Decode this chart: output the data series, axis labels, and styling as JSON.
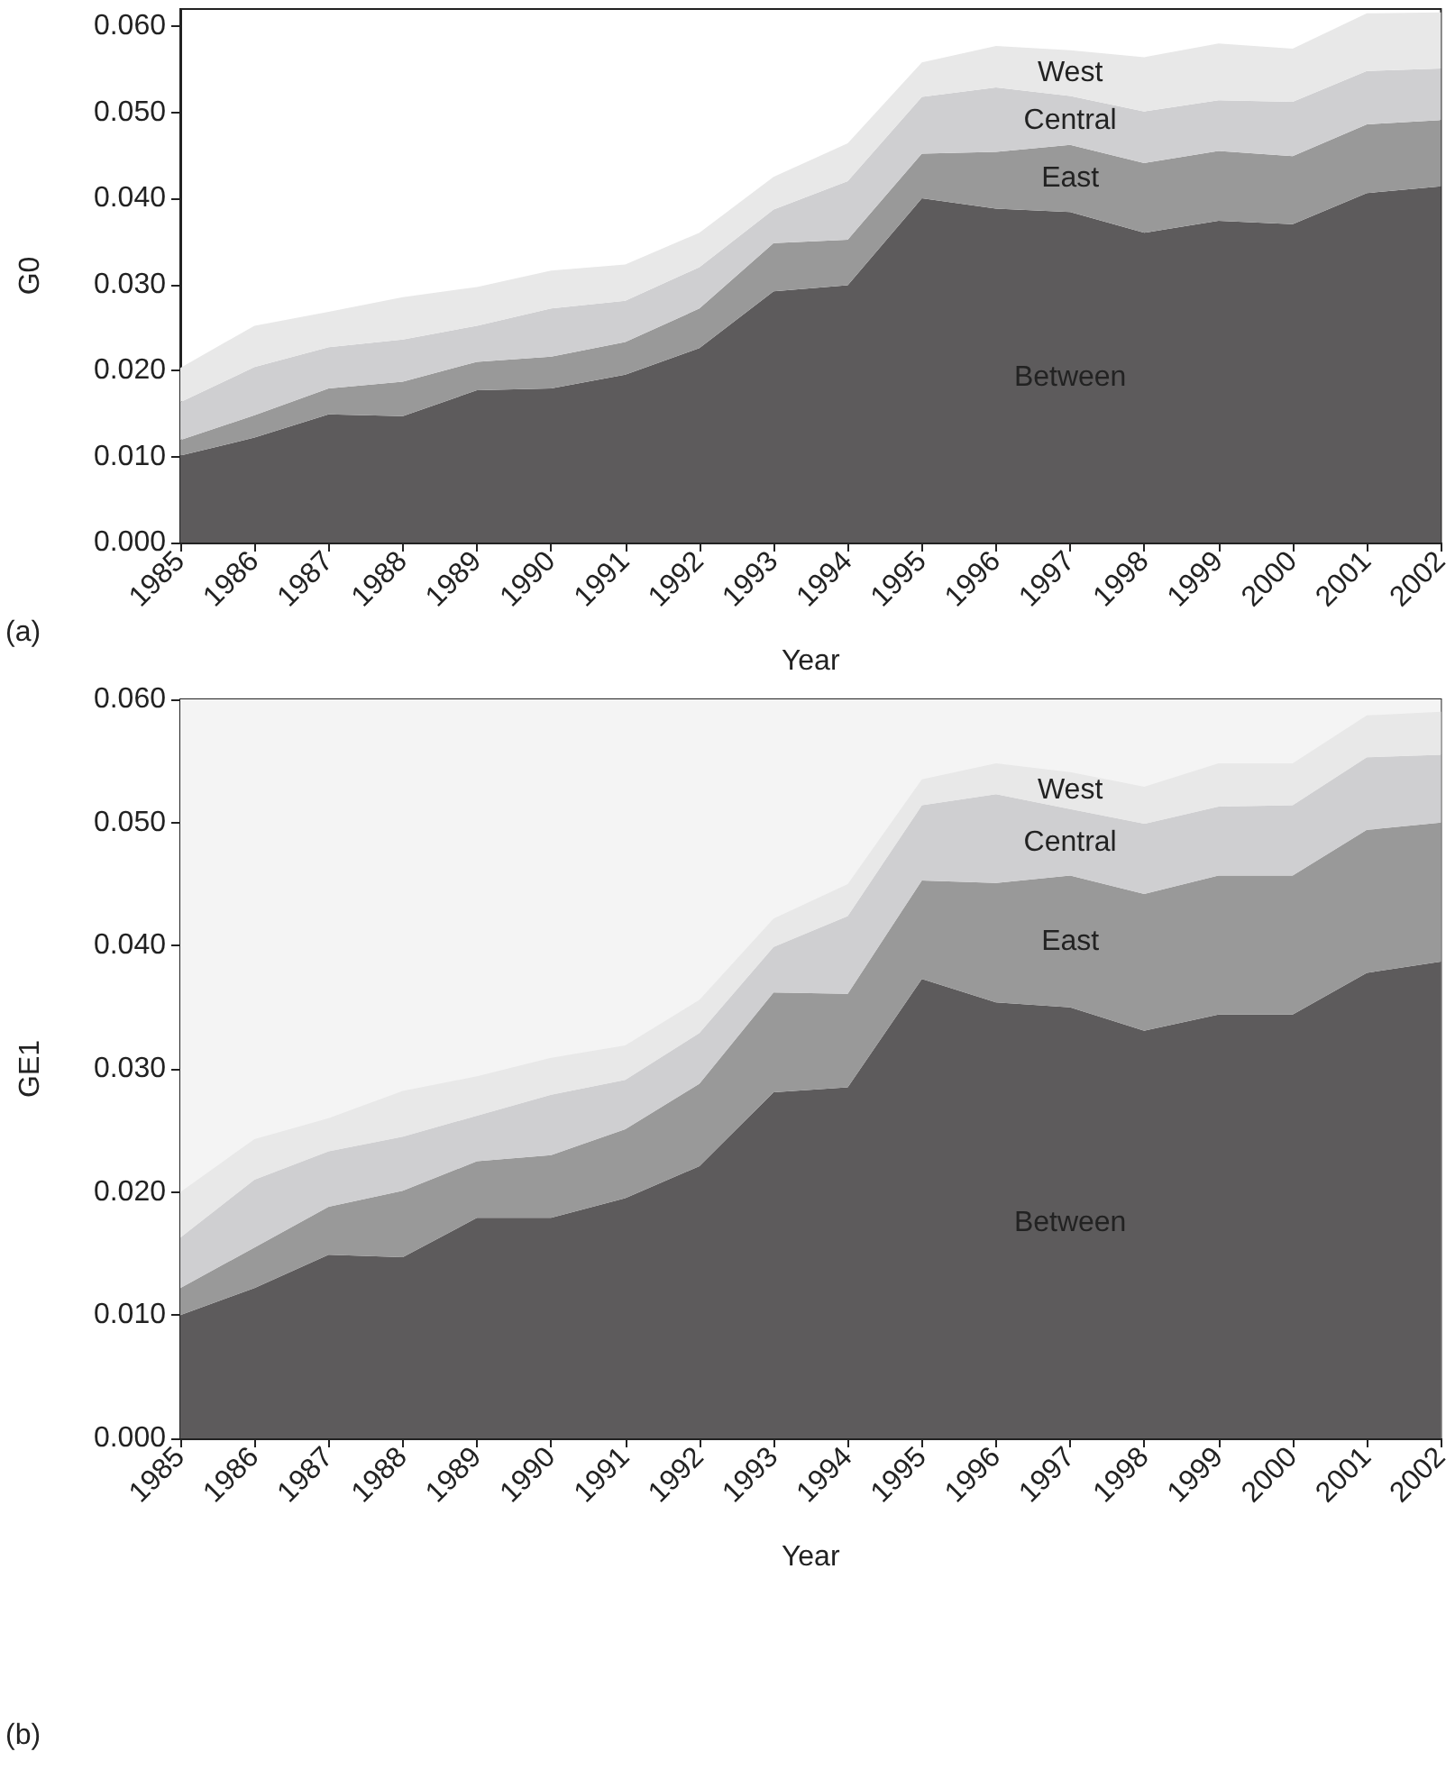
{
  "chart_data": [
    {
      "type": "area",
      "stacked": true,
      "xlabel": "Year",
      "ylabel": "G0",
      "annotations": [
        "(a)"
      ],
      "categories": [
        "1985",
        "1986",
        "1987",
        "1988",
        "1989",
        "1990",
        "1991",
        "1992",
        "1993",
        "1994",
        "1995",
        "1996",
        "1997",
        "1998",
        "1999",
        "2000",
        "2001",
        "2002"
      ],
      "ylim": [
        0,
        0.062
      ],
      "yticks": [
        {
          "value": 0,
          "label": "0.000"
        },
        {
          "value": 0.01,
          "label": "0.010"
        },
        {
          "value": 0.02,
          "label": "0.020"
        },
        {
          "value": 0.03,
          "label": "0.030"
        },
        {
          "value": 0.04,
          "label": "0.040"
        },
        {
          "value": 0.05,
          "label": "0.050"
        },
        {
          "value": 0.06,
          "label": "0.060"
        }
      ],
      "series": [
        {
          "name": "Between",
          "color": "#5d5b5c",
          "values": [
            0.0101,
            0.0122,
            0.0149,
            0.0147,
            0.0177,
            0.0179,
            0.0195,
            0.0226,
            0.0292,
            0.0299,
            0.04,
            0.0388,
            0.0384,
            0.036,
            0.0374,
            0.037,
            0.0406,
            0.0414
          ]
        },
        {
          "name": "East",
          "color": "#999999",
          "values": [
            0.0018,
            0.0026,
            0.003,
            0.004,
            0.0033,
            0.0037,
            0.0038,
            0.0046,
            0.0056,
            0.0053,
            0.0052,
            0.0066,
            0.0078,
            0.0081,
            0.0081,
            0.0079,
            0.008,
            0.0077
          ]
        },
        {
          "name": "Central",
          "color": "#cfcfd1",
          "values": [
            0.0044,
            0.0056,
            0.0048,
            0.0049,
            0.0042,
            0.0056,
            0.0048,
            0.0048,
            0.0039,
            0.0068,
            0.0066,
            0.0075,
            0.0057,
            0.006,
            0.0059,
            0.0063,
            0.0062,
            0.006
          ]
        },
        {
          "name": "West",
          "color": "#e8e8e8",
          "values": [
            0.004,
            0.0048,
            0.0041,
            0.0049,
            0.0045,
            0.0044,
            0.0042,
            0.004,
            0.0038,
            0.0044,
            0.004,
            0.0048,
            0.0053,
            0.0063,
            0.0066,
            0.0062,
            0.0067,
            0.0065
          ]
        }
      ]
    },
    {
      "type": "area",
      "stacked": true,
      "xlabel": "Year",
      "ylabel": "GE1",
      "annotations": [
        "(b)"
      ],
      "categories": [
        "1985",
        "1986",
        "1987",
        "1988",
        "1989",
        "1990",
        "1991",
        "1992",
        "1993",
        "1994",
        "1995",
        "1996",
        "1997",
        "1998",
        "1999",
        "2000",
        "2001",
        "2002"
      ],
      "ylim": [
        0,
        0.06
      ],
      "yticks": [
        {
          "value": 0,
          "label": "0.000"
        },
        {
          "value": 0.01,
          "label": "0.010"
        },
        {
          "value": 0.02,
          "label": "0.020"
        },
        {
          "value": 0.03,
          "label": "0.030"
        },
        {
          "value": 0.04,
          "label": "0.040"
        },
        {
          "value": 0.05,
          "label": "0.050"
        },
        {
          "value": 0.06,
          "label": "0.060"
        }
      ],
      "bands": [
        {
          "axis": "y",
          "from": 0,
          "to": 0.06,
          "color": "#f4f4f4"
        }
      ],
      "series": [
        {
          "name": "Between",
          "color": "#5d5b5c",
          "values": [
            0.01,
            0.0122,
            0.0149,
            0.0147,
            0.0179,
            0.0179,
            0.0195,
            0.0221,
            0.0281,
            0.0285,
            0.0373,
            0.0354,
            0.035,
            0.0331,
            0.0344,
            0.0344,
            0.0378,
            0.0387
          ]
        },
        {
          "name": "East",
          "color": "#999999",
          "values": [
            0.0022,
            0.0033,
            0.0039,
            0.0054,
            0.0046,
            0.0051,
            0.0056,
            0.0067,
            0.0081,
            0.0076,
            0.008,
            0.0097,
            0.0107,
            0.0111,
            0.0113,
            0.0113,
            0.0116,
            0.0113
          ]
        },
        {
          "name": "Central",
          "color": "#cfcfd1",
          "values": [
            0.0041,
            0.0055,
            0.0045,
            0.0044,
            0.0037,
            0.0049,
            0.004,
            0.0041,
            0.0037,
            0.0063,
            0.0061,
            0.0072,
            0.0054,
            0.0057,
            0.0056,
            0.0057,
            0.0059,
            0.0055
          ]
        },
        {
          "name": "West",
          "color": "#e8e8e8",
          "values": [
            0.0037,
            0.0033,
            0.0027,
            0.0037,
            0.0032,
            0.003,
            0.0028,
            0.0027,
            0.0023,
            0.0026,
            0.0021,
            0.0025,
            0.003,
            0.003,
            0.0035,
            0.0034,
            0.0034,
            0.0035
          ]
        }
      ]
    }
  ]
}
